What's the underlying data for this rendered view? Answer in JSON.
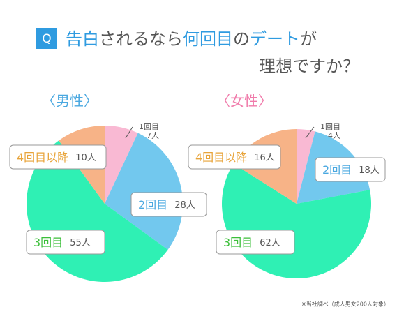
{
  "header": {
    "badge": "Q",
    "line1": [
      {
        "text": "告白",
        "color": "#2f9be0"
      },
      {
        "text": "されるなら",
        "color": "#555555"
      },
      {
        "text": "何回目",
        "color": "#2f9be0"
      },
      {
        "text": "の",
        "color": "#555555"
      },
      {
        "text": "デート",
        "color": "#2f9be0"
      },
      {
        "text": "が",
        "color": "#555555"
      }
    ],
    "line2": "理想ですか？"
  },
  "chart_data": [
    {
      "type": "pie",
      "title": "〈男性〉",
      "title_color": "#4aa8e0",
      "categories": [
        "1回目",
        "2回目",
        "3回目",
        "4回目以降"
      ],
      "values": [
        7,
        28,
        55,
        10
      ],
      "value_labels": [
        "7人",
        "28人",
        "55人",
        "10人"
      ],
      "colors": [
        "#f9b9d3",
        "#72c8ee",
        "#2ff0b4",
        "#f7b387"
      ],
      "label_colors": [
        "#555555",
        "#4aa8e0",
        "#3cbf3a",
        "#e8a43a"
      ]
    },
    {
      "type": "pie",
      "title": "〈女性〉",
      "title_color": "#f07aaa",
      "categories": [
        "1回目",
        "2回目",
        "3回目",
        "4回目以降"
      ],
      "values": [
        4,
        18,
        62,
        16
      ],
      "value_labels": [
        "4人",
        "18人",
        "62人",
        "16人"
      ],
      "colors": [
        "#f9b9d3",
        "#72c8ee",
        "#2ff0b4",
        "#f7b387"
      ],
      "label_colors": [
        "#555555",
        "#4aa8e0",
        "#3cbf3a",
        "#e8a43a"
      ]
    }
  ],
  "footnote": "※当社調べ（成人男女200人対象）"
}
